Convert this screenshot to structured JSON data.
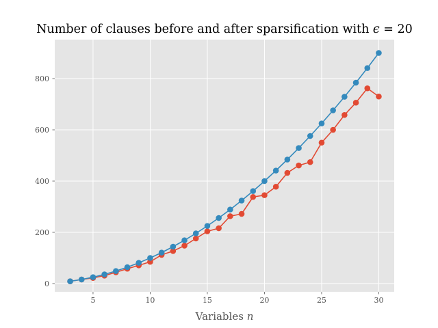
{
  "chart_data": {
    "type": "line",
    "title_main": "Number of clauses before and after sparsification with ",
    "title_symbol": "ϵ",
    "title_value": " = 20",
    "xlabel_main": "Variables ",
    "xlabel_symbol": "n",
    "ylabel": "",
    "xlim": [
      1.65,
      31.35
    ],
    "ylim": [
      -32,
      952
    ],
    "xticks": [
      5,
      10,
      15,
      20,
      25,
      30
    ],
    "yticks": [
      0,
      200,
      400,
      600,
      800
    ],
    "grid": true,
    "background": "#e5e5e5",
    "grid_color": "#ffffff",
    "x": [
      3,
      4,
      5,
      6,
      7,
      8,
      9,
      10,
      11,
      12,
      13,
      14,
      15,
      16,
      17,
      18,
      19,
      20,
      21,
      22,
      23,
      24,
      25,
      26,
      27,
      28,
      29,
      30
    ],
    "series": [
      {
        "color": "#e24a33",
        "values": [
          9,
          16,
          22,
          31,
          44,
          58,
          71,
          85,
          112,
          127,
          148,
          176,
          204,
          216,
          263,
          272,
          338,
          345,
          378,
          432,
          461,
          474,
          550,
          600,
          658,
          706,
          762,
          730
        ]
      },
      {
        "color": "#348abd",
        "values": [
          9,
          16,
          25,
          36,
          49,
          64,
          81,
          100,
          121,
          144,
          169,
          196,
          225,
          256,
          289,
          324,
          361,
          400,
          441,
          484,
          529,
          576,
          625,
          676,
          729,
          784,
          841,
          900
        ]
      }
    ]
  }
}
